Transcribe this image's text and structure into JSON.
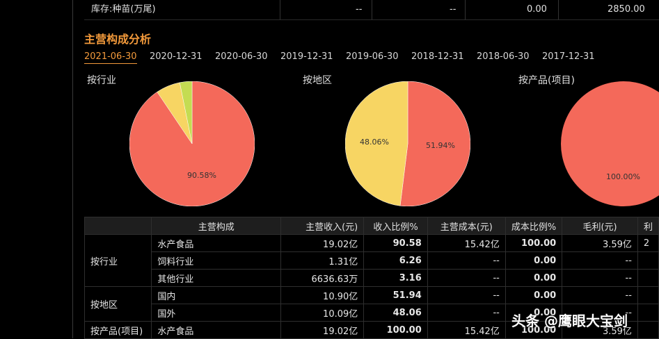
{
  "top_row": {
    "label": "库存:种苗(万尾)",
    "col1": "--",
    "col2": "--",
    "col3": "0.00",
    "col4": "2850.00"
  },
  "section_title": "主营构成分析",
  "tabs": [
    "2021-06-30",
    "2020-12-31",
    "2020-06-30",
    "2019-12-31",
    "2019-06-30",
    "2018-12-31",
    "2018-06-30",
    "2017-12-31"
  ],
  "active_tab": "2021-06-30",
  "pies": [
    {
      "title": "按行业",
      "label": "90.58%",
      "slices": [
        90.58,
        6.26,
        3.16
      ]
    },
    {
      "title": "按地区",
      "labels": [
        "51.94%",
        "48.06%"
      ],
      "slices": [
        51.94,
        48.06
      ]
    },
    {
      "title": "按产品(项目)",
      "label": "100.00%",
      "slices": [
        100
      ]
    }
  ],
  "colors": {
    "red": "#f4695a",
    "yellow": "#f7d563",
    "lime": "#c4dc52",
    "accent": "#f39a3b"
  },
  "table": {
    "headers": [
      "",
      "主营构成",
      "主营收入(元)",
      "收入比例%",
      "主营成本(元)",
      "成本比例%",
      "毛利(元)",
      "利"
    ],
    "groups": {
      "industry": "按行业",
      "region": "按地区",
      "product": "按产品(项目)"
    },
    "rows": [
      {
        "name": "水产食品",
        "revenue": "19.02亿",
        "rev_pct": "90.58",
        "cost": "15.42亿",
        "cost_pct": "100.00",
        "profit": "3.59亿",
        "extra": "2"
      },
      {
        "name": "饲料行业",
        "revenue": "1.31亿",
        "rev_pct": "6.26",
        "cost": "--",
        "cost_pct": "0.00",
        "profit": "--",
        "extra": ""
      },
      {
        "name": "其他行业",
        "revenue": "6636.63万",
        "rev_pct": "3.16",
        "cost": "--",
        "cost_pct": "0.00",
        "profit": "--",
        "extra": ""
      },
      {
        "name": "国内",
        "revenue": "10.90亿",
        "rev_pct": "51.94",
        "cost": "--",
        "cost_pct": "0.00",
        "profit": "--",
        "extra": ""
      },
      {
        "name": "国外",
        "revenue": "10.09亿",
        "rev_pct": "48.06",
        "cost": "--",
        "cost_pct": "0.00",
        "profit": "--",
        "extra": ""
      },
      {
        "name": "水产食品",
        "revenue": "19.02亿",
        "rev_pct": "100.00",
        "cost": "15.42亿",
        "cost_pct": "100.00",
        "profit": "3.59亿",
        "extra": ""
      }
    ]
  },
  "watermark": "头条 @鹰眼大宝剑"
}
